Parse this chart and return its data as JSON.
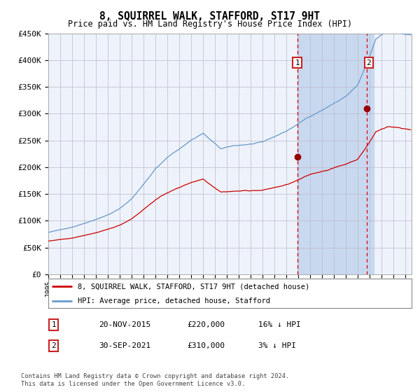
{
  "title": "8, SQUIRREL WALK, STAFFORD, ST17 9HT",
  "subtitle": "Price paid vs. HM Land Registry's House Price Index (HPI)",
  "legend_line1": "8, SQUIRREL WALK, STAFFORD, ST17 9HT (detached house)",
  "legend_line2": "HPI: Average price, detached house, Stafford",
  "annotation1_date": "20-NOV-2015",
  "annotation1_price": "£220,000",
  "annotation1_hpi": "16% ↓ HPI",
  "annotation1_year": 2015.9,
  "annotation1_value": 220000,
  "annotation2_date": "30-SEP-2021",
  "annotation2_price": "£310,000",
  "annotation2_hpi": "3% ↓ HPI",
  "annotation2_year": 2021.75,
  "annotation2_value": 310000,
  "hpi_color": "#6699cc",
  "price_color": "#cc0000",
  "dot_color": "#990000",
  "background_color": "#ffffff",
  "plot_bg_color": "#eef2fa",
  "shade_color": "#c8d8ef",
  "grid_color": "#bbbbcc",
  "dashed_color": "#dd0000",
  "ymin": 0,
  "ymax": 450000,
  "xmin": 1995.0,
  "xmax": 2025.5,
  "footnote": "Contains HM Land Registry data © Crown copyright and database right 2024.\nThis data is licensed under the Open Government Licence v3.0."
}
